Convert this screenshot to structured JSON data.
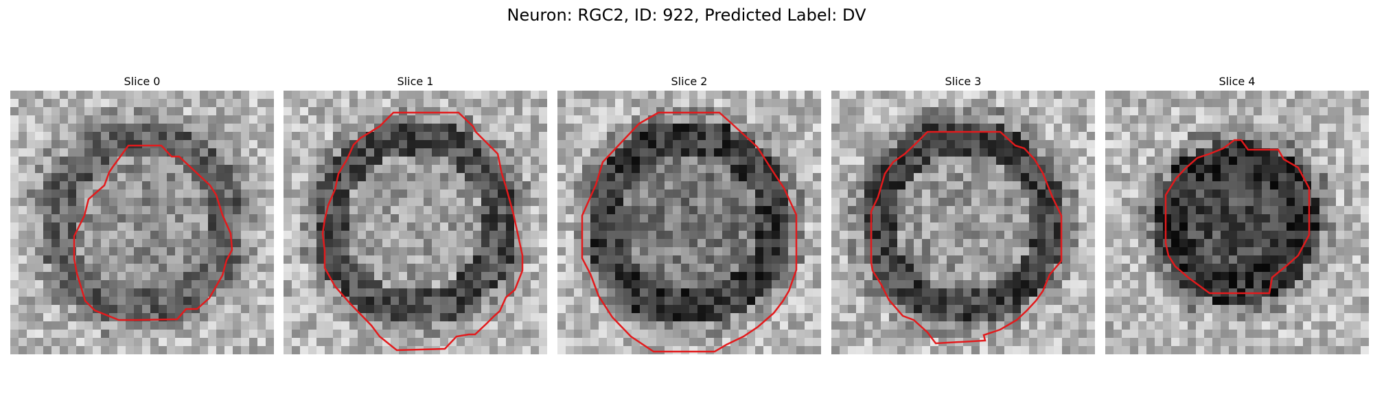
{
  "figure": {
    "title": "Neuron: RGC2, ID: 922, Predicted Label: DV",
    "outline_color": "#e31a1c"
  },
  "slices": [
    {
      "title": "Slice 0",
      "seed": 11,
      "ring_dark": 0.45,
      "core_dark": 0.25
    },
    {
      "title": "Slice 1",
      "seed": 23,
      "ring_dark": 0.55,
      "core_dark": 0.15
    },
    {
      "title": "Slice 2",
      "seed": 37,
      "ring_dark": 0.65,
      "core_dark": 0.4
    },
    {
      "title": "Slice 3",
      "seed": 41,
      "ring_dark": 0.6,
      "core_dark": 0.2
    },
    {
      "title": "Slice 4",
      "seed": 53,
      "ring_dark": 0.7,
      "core_dark": 0.7
    }
  ]
}
